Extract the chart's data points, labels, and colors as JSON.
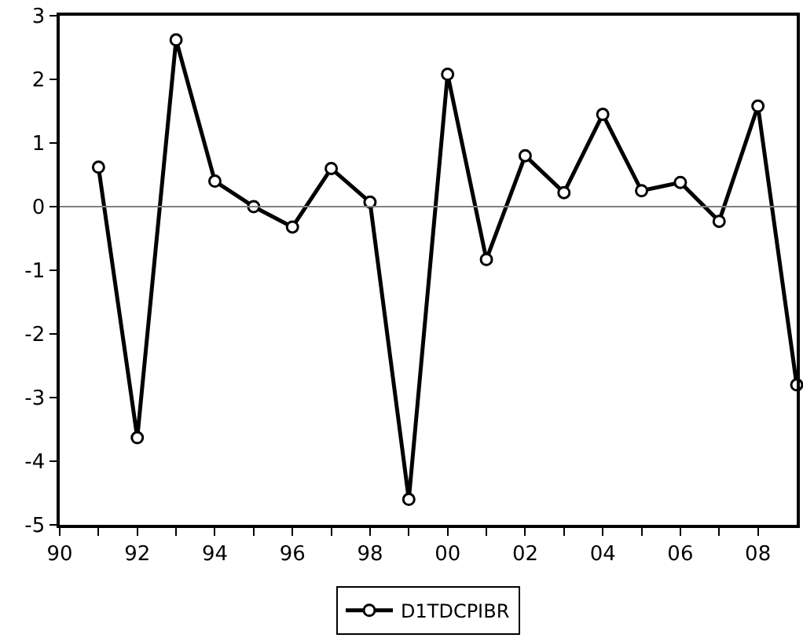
{
  "chart_data": {
    "type": "line",
    "x": [
      1991,
      1992,
      1993,
      1994,
      1995,
      1996,
      1997,
      1998,
      1999,
      2000,
      2001,
      2002,
      2003,
      2004,
      2005,
      2006,
      2007,
      2008,
      2009
    ],
    "series": [
      {
        "name": "D1TDCPIBR",
        "color": "#000000",
        "values": [
          0.62,
          -3.63,
          2.62,
          0.4,
          0.0,
          -0.32,
          0.6,
          0.07,
          -4.6,
          2.08,
          -0.83,
          0.8,
          0.22,
          1.45,
          0.25,
          0.38,
          -0.23,
          1.58,
          -2.8
        ]
      }
    ],
    "xlim": [
      1990,
      2009
    ],
    "xticks": [
      {
        "value": 1990,
        "label": "90"
      },
      {
        "value": 1991,
        "label": null
      },
      {
        "value": 1992,
        "label": "92"
      },
      {
        "value": 1993,
        "label": null
      },
      {
        "value": 1994,
        "label": "94"
      },
      {
        "value": 1995,
        "label": null
      },
      {
        "value": 1996,
        "label": "96"
      },
      {
        "value": 1997,
        "label": null
      },
      {
        "value": 1998,
        "label": "98"
      },
      {
        "value": 1999,
        "label": null
      },
      {
        "value": 2000,
        "label": "00"
      },
      {
        "value": 2001,
        "label": null
      },
      {
        "value": 2002,
        "label": "02"
      },
      {
        "value": 2003,
        "label": null
      },
      {
        "value": 2004,
        "label": "04"
      },
      {
        "value": 2005,
        "label": null
      },
      {
        "value": 2006,
        "label": "06"
      },
      {
        "value": 2007,
        "label": null
      },
      {
        "value": 2008,
        "label": "08"
      }
    ],
    "ylim": [
      -5,
      3
    ],
    "yticks": [
      -5,
      -4,
      -3,
      -2,
      -1,
      0,
      1,
      2,
      3
    ],
    "ref_lines": [
      {
        "axis": "y",
        "value": 0,
        "color": "#808080"
      }
    ],
    "legend": "bottom",
    "marker": "circle",
    "line_style": "solid"
  }
}
